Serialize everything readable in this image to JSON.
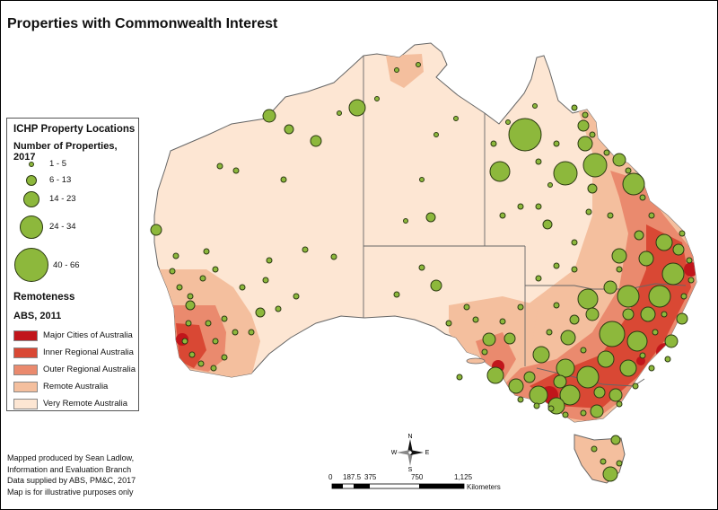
{
  "title": "Properties with Commonwealth Interest",
  "legend": {
    "heading": "ICHP Property Locations",
    "subheading": "Number of Properties, 2017",
    "size_classes": [
      {
        "label": "1 - 5"
      },
      {
        "label": "6 - 13"
      },
      {
        "label": "14 - 23"
      },
      {
        "label": "24 - 34"
      },
      {
        "label": "40 - 66"
      }
    ],
    "remoteness_heading": "Remoteness",
    "remoteness_sub": "ABS, 2011",
    "remoteness_classes": [
      {
        "label": "Major Cities of Australia",
        "color": "#c1151b"
      },
      {
        "label": "Inner Regional Australia",
        "color": "#d94834"
      },
      {
        "label": "Outer Regional Australia",
        "color": "#ea8a6e"
      },
      {
        "label": "Remote Australia",
        "color": "#f4bf9e"
      },
      {
        "label": "Very Remote Australia",
        "color": "#fde6d3"
      }
    ]
  },
  "credits": {
    "line1": "Mapped produced by Sean Ladlow,",
    "line2": "Information and Evaluation Branch",
    "line3": "Data supplied by ABS, PM&C, 2017",
    "line4": "Map is for illustrative purposes only"
  },
  "compass": {
    "n": "N",
    "s": "S",
    "e": "E",
    "w": "W"
  },
  "scale_bar": {
    "ticks": [
      "0",
      "187.5",
      "375",
      "750",
      "1,125"
    ],
    "unit": "Kilometers"
  },
  "colors": {
    "property_fill": "#8db83c",
    "property_stroke": "#2c3a12",
    "border": "#555555"
  }
}
